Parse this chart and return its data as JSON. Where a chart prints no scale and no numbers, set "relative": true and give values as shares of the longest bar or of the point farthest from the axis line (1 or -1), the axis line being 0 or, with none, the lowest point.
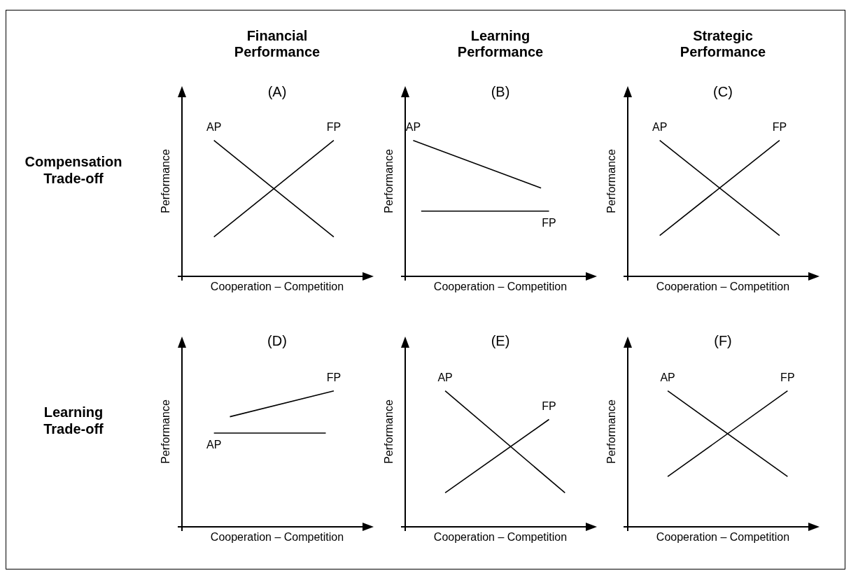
{
  "chart_data": [
    {
      "type": "line",
      "title": "Financial Performance",
      "subtitle": "(A)",
      "xlabel": "Cooperation – Competition",
      "ylabel": "Performance",
      "relative": true,
      "annotations": [
        "Compensation Trade-off"
      ],
      "categories": [
        null,
        null,
        null,
        null,
        null,
        null,
        null,
        null,
        null,
        null,
        null,
        null,
        null,
        null,
        null,
        null,
        null,
        null,
        null,
        null,
        null,
        null,
        null,
        null,
        null
      ],
      "series": [
        {
          "name": "AP",
          "color": "#000000",
          "values": [
            null,
            null,
            null,
            null,
            1,
            null,
            null,
            null,
            null,
            null,
            null,
            null,
            null,
            null,
            null,
            null,
            null,
            null,
            null,
            0.29,
            null,
            null,
            null,
            null,
            null
          ]
        },
        {
          "name": "FP",
          "color": "#000000",
          "values": [
            null,
            null,
            null,
            null,
            0.29,
            null,
            null,
            null,
            null,
            null,
            null,
            null,
            null,
            null,
            null,
            null,
            null,
            null,
            null,
            1,
            null,
            null,
            null,
            null,
            null
          ]
        }
      ]
    },
    {
      "type": "line",
      "title": "Learning Performance",
      "subtitle": "(B)",
      "xlabel": "Cooperation – Competition",
      "ylabel": "Performance",
      "relative": true,
      "categories": [
        null,
        null,
        null,
        null,
        null,
        null,
        null,
        null,
        null,
        null,
        null,
        null,
        null,
        null,
        null,
        null,
        null,
        null,
        null,
        null,
        null,
        null,
        null,
        null,
        null
      ],
      "series": [
        {
          "name": "AP",
          "color": "#000000",
          "values": [
            null,
            1,
            null,
            null,
            null,
            null,
            null,
            null,
            null,
            null,
            null,
            null,
            null,
            null,
            null,
            null,
            null,
            0.65,
            null,
            null,
            null,
            null,
            null,
            null,
            null
          ]
        },
        {
          "name": "FP",
          "color": "#000000",
          "values": [
            null,
            null,
            0.48,
            null,
            null,
            null,
            null,
            null,
            null,
            null,
            null,
            null,
            null,
            null,
            null,
            null,
            null,
            null,
            0.48,
            null,
            null,
            null,
            null,
            null,
            null
          ]
        }
      ]
    },
    {
      "type": "line",
      "title": "Strategic Performance",
      "subtitle": "(C)",
      "xlabel": "Cooperation – Competition",
      "ylabel": "Performance",
      "relative": true,
      "categories": [
        null,
        null,
        null,
        null,
        null,
        null,
        null,
        null,
        null,
        null,
        null,
        null,
        null,
        null,
        null,
        null,
        null,
        null,
        null,
        null,
        null,
        null,
        null,
        null,
        null
      ],
      "series": [
        {
          "name": "AP",
          "color": "#000000",
          "values": [
            null,
            null,
            null,
            null,
            1,
            null,
            null,
            null,
            null,
            null,
            null,
            null,
            null,
            null,
            null,
            null,
            null,
            null,
            null,
            0.3,
            null,
            null,
            null,
            null,
            null
          ]
        },
        {
          "name": "FP",
          "color": "#000000",
          "values": [
            null,
            null,
            null,
            null,
            0.3,
            null,
            null,
            null,
            null,
            null,
            null,
            null,
            null,
            null,
            null,
            null,
            null,
            null,
            null,
            1,
            null,
            null,
            null,
            null,
            null
          ]
        }
      ]
    },
    {
      "type": "line",
      "title": "(D)",
      "xlabel": "Cooperation – Competition",
      "ylabel": "Performance",
      "relative": true,
      "annotations": [
        "Learning Trade-off"
      ],
      "categories": [
        null,
        null,
        null,
        null,
        null,
        null,
        null,
        null,
        null,
        null,
        null,
        null,
        null,
        null,
        null,
        null,
        null,
        null,
        null,
        null,
        null,
        null,
        null,
        null,
        null
      ],
      "series": [
        {
          "name": "AP",
          "color": "#000000",
          "values": [
            null,
            null,
            null,
            null,
            0.69,
            null,
            null,
            null,
            null,
            null,
            null,
            null,
            null,
            null,
            null,
            null,
            null,
            null,
            0.69,
            null,
            null,
            null,
            null,
            null,
            null
          ]
        },
        {
          "name": "FP",
          "color": "#000000",
          "values": [
            null,
            null,
            null,
            null,
            null,
            null,
            0.81,
            null,
            null,
            null,
            null,
            null,
            null,
            null,
            null,
            null,
            null,
            null,
            null,
            1,
            null,
            null,
            null,
            null,
            null
          ]
        }
      ]
    },
    {
      "type": "line",
      "title": "(E)",
      "xlabel": "Cooperation – Competition",
      "ylabel": "Performance",
      "relative": true,
      "categories": [
        null,
        null,
        null,
        null,
        null,
        null,
        null,
        null,
        null,
        null,
        null,
        null,
        null,
        null,
        null,
        null,
        null,
        null,
        null,
        null,
        null,
        null,
        null,
        null,
        null
      ],
      "series": [
        {
          "name": "AP",
          "color": "#000000",
          "values": [
            null,
            null,
            null,
            null,
            null,
            1,
            null,
            null,
            null,
            null,
            null,
            null,
            null,
            null,
            null,
            null,
            null,
            null,
            null,
            null,
            0.25,
            null,
            null,
            null,
            null
          ]
        },
        {
          "name": "FP",
          "color": "#000000",
          "values": [
            null,
            null,
            null,
            null,
            null,
            0.25,
            null,
            null,
            null,
            null,
            null,
            null,
            null,
            null,
            null,
            null,
            null,
            null,
            0.79,
            null,
            null,
            null,
            null,
            null,
            null
          ]
        }
      ]
    },
    {
      "type": "line",
      "title": "(F)",
      "xlabel": "Cooperation – Competition",
      "ylabel": "Performance",
      "relative": true,
      "categories": [
        null,
        null,
        null,
        null,
        null,
        null,
        null,
        null,
        null,
        null,
        null,
        null,
        null,
        null,
        null,
        null,
        null,
        null,
        null,
        null,
        null,
        null,
        null,
        null,
        null
      ],
      "series": [
        {
          "name": "AP",
          "color": "#000000",
          "values": [
            null,
            null,
            null,
            null,
            null,
            1,
            null,
            null,
            null,
            null,
            null,
            null,
            null,
            null,
            null,
            null,
            null,
            null,
            null,
            null,
            0.37,
            null,
            null,
            null,
            null
          ]
        },
        {
          "name": "FP",
          "color": "#000000",
          "values": [
            null,
            null,
            null,
            null,
            null,
            0.37,
            null,
            null,
            null,
            null,
            null,
            null,
            null,
            null,
            null,
            null,
            null,
            null,
            null,
            null,
            1,
            null,
            null,
            null,
            null
          ]
        }
      ]
    }
  ]
}
